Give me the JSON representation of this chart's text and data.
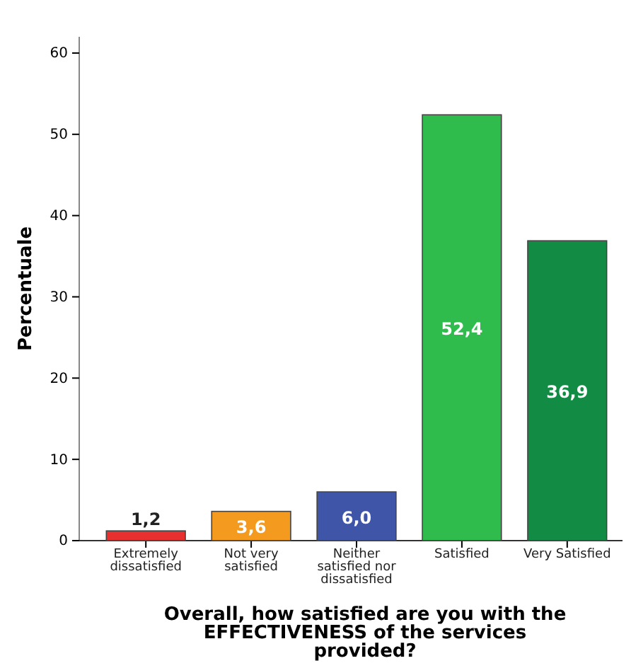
{
  "chart_data": {
    "type": "bar",
    "xlabel": "Overall, how satisfied are you with the EFFECTIVENESS of the services provided?",
    "ylabel": "Percentuale",
    "categories": [
      "Extremely dissatisfied",
      "Not very satisfied",
      "Neither satisfied nor dissatisfied",
      "Satisfied",
      "Very Satisfied"
    ],
    "values": [
      1.2,
      3.6,
      6.0,
      52.4,
      36.9
    ],
    "colors": [
      "#e8312f",
      "#f39a1f",
      "#3f55a8",
      "#2fbc4c",
      "#128c44"
    ],
    "value_labels": [
      "1,2",
      "3,6",
      "6,0",
      "52,4",
      "36,9"
    ],
    "ylim": [
      0,
      62
    ],
    "yticks": [
      0,
      10,
      20,
      30,
      40,
      50,
      60
    ],
    "grid": false
  }
}
